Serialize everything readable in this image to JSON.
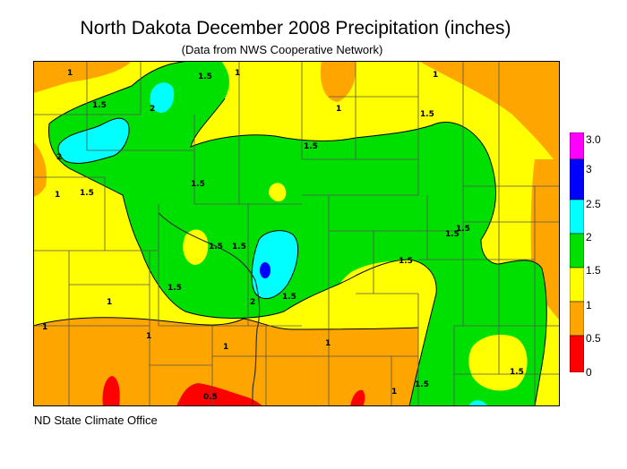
{
  "title": "North Dakota December 2008 Precipitation (inches)",
  "subtitle": "(Data from NWS Cooperative Network)",
  "credit": "ND State Climate Office",
  "legend": {
    "bins": [
      {
        "label": "0",
        "color": "#ff0000"
      },
      {
        "label": "0.5",
        "color": "#ffa500"
      },
      {
        "label": "1",
        "color": "#ffff00"
      },
      {
        "label": "1.5",
        "color": "#00e000"
      },
      {
        "label": "2",
        "color": "#00ffff"
      },
      {
        "label": "2.5",
        "color": "#0000ff"
      },
      {
        "label": "3",
        "color": "#ff00ff"
      },
      {
        "label": "3.0",
        "color": ""
      }
    ]
  },
  "contour_labels": [
    "1",
    "1.5",
    "2",
    "1",
    "1.5",
    "1",
    "1.5",
    "1",
    "2",
    "1.5",
    "1.5",
    "1",
    "1.5",
    "1.5",
    "1.5",
    "1.5",
    "1.5",
    "2",
    "1.5",
    "1.5",
    "1.5",
    "1",
    "1",
    "1",
    "0.5",
    "1",
    "1",
    "1.5",
    "1.5",
    "1"
  ]
}
